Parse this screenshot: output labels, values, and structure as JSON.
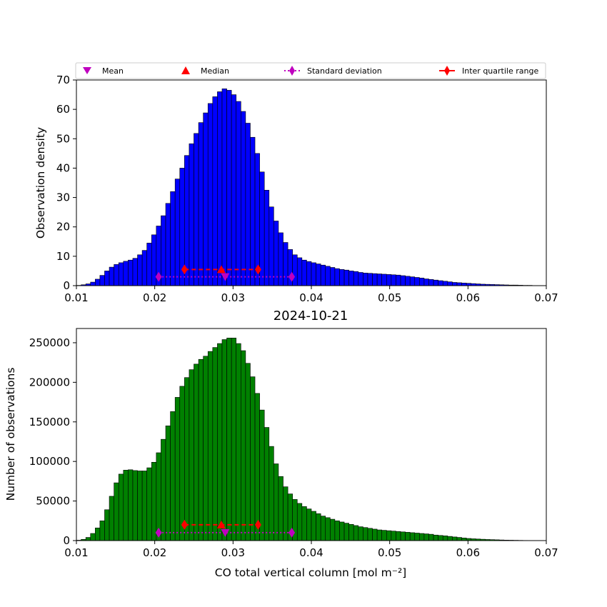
{
  "legend": {
    "placement": "above top plot",
    "items": [
      {
        "label": "Mean",
        "color": "#bf00bf",
        "marker": "triangle-down"
      },
      {
        "label": "Median",
        "color": "#ff0000",
        "marker": "triangle-up"
      },
      {
        "label": "Standard deviation",
        "color": "#bf00bf",
        "marker": "diamond",
        "line": "dotted"
      },
      {
        "label": "Inter quartile range",
        "color": "#ff0000",
        "marker": "diamond",
        "line": "solid"
      }
    ]
  },
  "chart_data": [
    {
      "type": "bar",
      "title": "",
      "xlabel": "",
      "ylabel": "Observation density",
      "xlim": [
        0.01,
        0.07
      ],
      "ylim": [
        0,
        70
      ],
      "x_ticks": [
        "0.01",
        "0.02",
        "0.03",
        "0.04",
        "0.05",
        "0.06",
        "0.07"
      ],
      "y_ticks": [
        "0",
        "10",
        "20",
        "30",
        "40",
        "50",
        "60",
        "70"
      ],
      "bar_color": "#0000ff",
      "bin_start": 0.01,
      "bin_width": 0.0006,
      "values": [
        0.1,
        0.3,
        0.6,
        1.2,
        2.2,
        3.5,
        5.0,
        6.3,
        7.2,
        7.8,
        8.3,
        8.7,
        9.3,
        10.5,
        12.0,
        14.5,
        17.3,
        20.3,
        23.8,
        28.0,
        32.0,
        36.3,
        40.0,
        44.3,
        48.3,
        51.8,
        55.5,
        58.8,
        62.0,
        64.3,
        66.0,
        67.0,
        66.5,
        65.0,
        62.7,
        59.3,
        55.3,
        50.5,
        45.0,
        38.7,
        32.5,
        26.8,
        22.0,
        18.0,
        14.7,
        12.3,
        10.5,
        9.5,
        8.7,
        8.2,
        7.8,
        7.4,
        7.0,
        6.6,
        6.2,
        5.8,
        5.5,
        5.3,
        5.0,
        4.8,
        4.5,
        4.3,
        4.2,
        4.1,
        4.0,
        3.9,
        3.8,
        3.7,
        3.6,
        3.4,
        3.2,
        3.0,
        2.8,
        2.6,
        2.3,
        2.1,
        1.9,
        1.7,
        1.5,
        1.3,
        1.1,
        1.0,
        0.9,
        0.8,
        0.7,
        0.6,
        0.5,
        0.45,
        0.4,
        0.35,
        0.3,
        0.25,
        0.2,
        0.2,
        0.15,
        0.1,
        0.1,
        0.05,
        0.05,
        0.03
      ],
      "markers": {
        "mean": {
          "x": 0.029,
          "y": 3
        },
        "median": {
          "x": 0.0285,
          "y": 5.5
        },
        "std": {
          "x": [
            0.0205,
            0.0375
          ],
          "y": 3
        },
        "iqr": {
          "x": [
            0.0238,
            0.0332
          ],
          "y": 5.5
        }
      }
    },
    {
      "type": "bar",
      "title": "2024-10-21",
      "xlabel": "CO total vertical column [mol m⁻²]",
      "ylabel": "Number of observations",
      "xlim": [
        0.01,
        0.07
      ],
      "ylim": [
        0,
        268000
      ],
      "x_ticks": [
        "0.01",
        "0.02",
        "0.03",
        "0.04",
        "0.05",
        "0.06",
        "0.07"
      ],
      "y_ticks": [
        "0",
        "50000",
        "100000",
        "150000",
        "200000",
        "250000"
      ],
      "bar_color": "#008000",
      "bin_start": 0.01,
      "bin_width": 0.0006,
      "values": [
        500,
        1500,
        4000,
        9000,
        16000,
        25000,
        39000,
        56000,
        73000,
        84000,
        89000,
        89500,
        88500,
        88000,
        88000,
        92000,
        99000,
        111000,
        128000,
        145000,
        163000,
        181000,
        195000,
        206000,
        216000,
        223000,
        229000,
        233000,
        239000,
        244000,
        249000,
        254000,
        256000,
        256000,
        249000,
        240000,
        224000,
        207000,
        186000,
        165000,
        143000,
        119000,
        97000,
        81000,
        68000,
        59000,
        52000,
        47000,
        43000,
        40000,
        37000,
        34000,
        31000,
        29000,
        27000,
        25000,
        23500,
        22000,
        20500,
        19000,
        17500,
        16500,
        15500,
        14500,
        13500,
        13000,
        12500,
        12000,
        11500,
        11000,
        10500,
        10000,
        9500,
        9000,
        8500,
        8000,
        7000,
        6500,
        6000,
        5300,
        4600,
        4000,
        3300,
        2700,
        2300,
        2000,
        1700,
        1400,
        1200,
        1000,
        800,
        600,
        500,
        400,
        300,
        200,
        150,
        100,
        60,
        40
      ],
      "markers": {
        "mean": {
          "x": 0.029,
          "y": 10000
        },
        "median": {
          "x": 0.0285,
          "y": 20000
        },
        "std": {
          "x": [
            0.0205,
            0.0375
          ],
          "y": 10000
        },
        "iqr": {
          "x": [
            0.0238,
            0.0332
          ],
          "y": 20000
        }
      }
    }
  ]
}
